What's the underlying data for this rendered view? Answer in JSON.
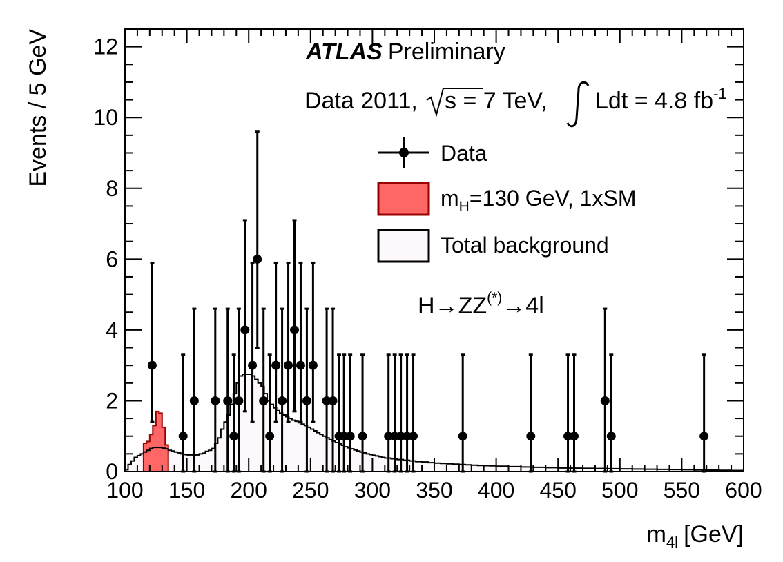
{
  "chart_data": {
    "type": "histogram",
    "title": "ATLAS",
    "title_suffix": "Preliminary",
    "lumi_prefix": "Data 2011,",
    "lumi_sqrt": "s = 7 TeV,",
    "lumi_text": "Ldt = 4.8 fb",
    "lumi_exp": "-1",
    "channel_H": "H",
    "channel_arrow": "→",
    "channel_ZZ": "ZZ",
    "channel_star": "(*)",
    "channel_4l": "4l",
    "xlabel_main": "m",
    "xlabel_sub": "4l",
    "xlabel_unit": "[GeV]",
    "ylabel": "Events / 5 GeV",
    "xlim": [
      100,
      600
    ],
    "ylim": [
      0,
      12.5
    ],
    "x_ticks": [
      100,
      150,
      200,
      250,
      300,
      350,
      400,
      450,
      500,
      550,
      600
    ],
    "y_ticks": [
      0,
      2,
      4,
      6,
      8,
      10,
      12
    ],
    "legend": {
      "data": "Data",
      "signal_main": "m",
      "signal_sub": "H",
      "signal_rest": "=130 GeV, 1xSM",
      "background": "Total background"
    },
    "background_step": [
      [
        100,
        0.05
      ],
      [
        102.5,
        0.2
      ],
      [
        105,
        0.3
      ],
      [
        107.5,
        0.4
      ],
      [
        110,
        0.45
      ],
      [
        112.5,
        0.5
      ],
      [
        115,
        0.55
      ],
      [
        117.5,
        0.6
      ],
      [
        120,
        0.65
      ],
      [
        122.5,
        0.68
      ],
      [
        125,
        0.68
      ],
      [
        127.5,
        0.68
      ],
      [
        130,
        0.66
      ],
      [
        132.5,
        0.64
      ],
      [
        135,
        0.6
      ],
      [
        137.5,
        0.58
      ],
      [
        140,
        0.55
      ],
      [
        142.5,
        0.53
      ],
      [
        145,
        0.5
      ],
      [
        147.5,
        0.48
      ],
      [
        150,
        0.47
      ],
      [
        152.5,
        0.47
      ],
      [
        155,
        0.46
      ],
      [
        157.5,
        0.47
      ],
      [
        160,
        0.5
      ],
      [
        162.5,
        0.52
      ],
      [
        165,
        0.57
      ],
      [
        167.5,
        0.6
      ],
      [
        170,
        0.65
      ],
      [
        172.5,
        0.8
      ],
      [
        175,
        0.95
      ],
      [
        177.5,
        1.2
      ],
      [
        180,
        1.4
      ],
      [
        182.5,
        1.6
      ],
      [
        185,
        1.9
      ],
      [
        187.5,
        2.2
      ],
      [
        190,
        2.5
      ],
      [
        192.5,
        2.7
      ],
      [
        195,
        2.75
      ],
      [
        197.5,
        2.75
      ],
      [
        200,
        2.75
      ],
      [
        202.5,
        2.7
      ],
      [
        205,
        2.6
      ],
      [
        207.5,
        2.5
      ],
      [
        210,
        2.4
      ],
      [
        212.5,
        2.2
      ],
      [
        215,
        2.0
      ],
      [
        217.5,
        1.9
      ],
      [
        220,
        1.8
      ],
      [
        222.5,
        1.72
      ],
      [
        225,
        1.65
      ],
      [
        227.5,
        1.6
      ],
      [
        230,
        1.55
      ],
      [
        232.5,
        1.5
      ],
      [
        235,
        1.45
      ],
      [
        237.5,
        1.42
      ],
      [
        240,
        1.38
      ],
      [
        242.5,
        1.34
      ],
      [
        245,
        1.3
      ],
      [
        247.5,
        1.25
      ],
      [
        250,
        1.2
      ],
      [
        252.5,
        1.15
      ],
      [
        255,
        1.1
      ],
      [
        257.5,
        1.05
      ],
      [
        260,
        1.0
      ],
      [
        262.5,
        0.95
      ],
      [
        265,
        0.9
      ],
      [
        267.5,
        0.86
      ],
      [
        270,
        0.82
      ],
      [
        272.5,
        0.78
      ],
      [
        275,
        0.74
      ],
      [
        277.5,
        0.7
      ],
      [
        280,
        0.67
      ],
      [
        282.5,
        0.64
      ],
      [
        285,
        0.61
      ],
      [
        287.5,
        0.58
      ],
      [
        290,
        0.55
      ],
      [
        292.5,
        0.53
      ],
      [
        295,
        0.5
      ],
      [
        297.5,
        0.48
      ],
      [
        300,
        0.46
      ],
      [
        302.5,
        0.44
      ],
      [
        305,
        0.42
      ],
      [
        307.5,
        0.4
      ],
      [
        310,
        0.38
      ],
      [
        315,
        0.36
      ],
      [
        320,
        0.34
      ],
      [
        325,
        0.32
      ],
      [
        330,
        0.3
      ],
      [
        335,
        0.28
      ],
      [
        340,
        0.27
      ],
      [
        345,
        0.25
      ],
      [
        350,
        0.24
      ],
      [
        355,
        0.23
      ],
      [
        360,
        0.22
      ],
      [
        365,
        0.21
      ],
      [
        370,
        0.2
      ],
      [
        375,
        0.19
      ],
      [
        380,
        0.18
      ],
      [
        385,
        0.17
      ],
      [
        390,
        0.165
      ],
      [
        395,
        0.16
      ],
      [
        400,
        0.15
      ],
      [
        410,
        0.14
      ],
      [
        420,
        0.13
      ],
      [
        430,
        0.12
      ],
      [
        440,
        0.11
      ],
      [
        450,
        0.1
      ],
      [
        460,
        0.095
      ],
      [
        470,
        0.09
      ],
      [
        480,
        0.085
      ],
      [
        490,
        0.08
      ],
      [
        500,
        0.075
      ],
      [
        510,
        0.07
      ],
      [
        520,
        0.065
      ],
      [
        530,
        0.06
      ],
      [
        540,
        0.055
      ],
      [
        550,
        0.05
      ],
      [
        560,
        0.045
      ],
      [
        570,
        0.04
      ],
      [
        580,
        0.035
      ],
      [
        590,
        0.03
      ],
      [
        600,
        0.03
      ]
    ],
    "signal_step": [
      [
        115,
        0.8
      ],
      [
        117.5,
        0.85
      ],
      [
        120,
        1.05
      ],
      [
        122.5,
        1.3
      ],
      [
        125,
        1.7
      ],
      [
        127.5,
        1.65
      ],
      [
        130,
        1.25
      ],
      [
        132.5,
        0.75
      ]
    ],
    "data_points": [
      {
        "x": 122,
        "y": 3,
        "lo": 1.4,
        "hi": 5.9
      },
      {
        "x": 147,
        "y": 1,
        "lo": 0.0,
        "hi": 3.3
      },
      {
        "x": 156,
        "y": 2,
        "lo": 0.0,
        "hi": 4.6
      },
      {
        "x": 173,
        "y": 2,
        "lo": 0.0,
        "hi": 4.6
      },
      {
        "x": 183,
        "y": 2,
        "lo": 0.0,
        "hi": 4.6
      },
      {
        "x": 188,
        "y": 1,
        "lo": 0.0,
        "hi": 3.3
      },
      {
        "x": 192,
        "y": 2,
        "lo": 0.0,
        "hi": 4.6
      },
      {
        "x": 197,
        "y": 4,
        "lo": 1.7,
        "hi": 7.1
      },
      {
        "x": 203,
        "y": 3,
        "lo": 1.4,
        "hi": 5.9
      },
      {
        "x": 207,
        "y": 6,
        "lo": 3.5,
        "hi": 9.6
      },
      {
        "x": 212,
        "y": 2,
        "lo": 0.0,
        "hi": 4.6
      },
      {
        "x": 217,
        "y": 1,
        "lo": 0.0,
        "hi": 3.3
      },
      {
        "x": 222,
        "y": 3,
        "lo": 1.4,
        "hi": 5.9
      },
      {
        "x": 227,
        "y": 2,
        "lo": 0.0,
        "hi": 4.6
      },
      {
        "x": 232,
        "y": 3,
        "lo": 1.4,
        "hi": 5.9
      },
      {
        "x": 237,
        "y": 4,
        "lo": 1.7,
        "hi": 7.1
      },
      {
        "x": 242,
        "y": 3,
        "lo": 1.4,
        "hi": 5.9
      },
      {
        "x": 247,
        "y": 2,
        "lo": 0.0,
        "hi": 4.6
      },
      {
        "x": 252,
        "y": 3,
        "lo": 1.4,
        "hi": 5.9
      },
      {
        "x": 263,
        "y": 2,
        "lo": 0.0,
        "hi": 4.6
      },
      {
        "x": 268,
        "y": 2,
        "lo": 0.0,
        "hi": 4.6
      },
      {
        "x": 273,
        "y": 1,
        "lo": 0.0,
        "hi": 3.3
      },
      {
        "x": 277,
        "y": 1,
        "lo": 0.0,
        "hi": 3.3
      },
      {
        "x": 282,
        "y": 1,
        "lo": 0.0,
        "hi": 3.3
      },
      {
        "x": 292,
        "y": 1,
        "lo": 0.0,
        "hi": 3.3
      },
      {
        "x": 313,
        "y": 1,
        "lo": 0.0,
        "hi": 3.3
      },
      {
        "x": 318,
        "y": 1,
        "lo": 0.0,
        "hi": 3.3
      },
      {
        "x": 323,
        "y": 1,
        "lo": 0.0,
        "hi": 3.3
      },
      {
        "x": 328,
        "y": 1,
        "lo": 0.0,
        "hi": 3.3
      },
      {
        "x": 333,
        "y": 1,
        "lo": 0.0,
        "hi": 3.3
      },
      {
        "x": 373,
        "y": 1,
        "lo": 0.0,
        "hi": 3.3
      },
      {
        "x": 428,
        "y": 1,
        "lo": 0.0,
        "hi": 3.3
      },
      {
        "x": 458,
        "y": 1,
        "lo": 0.0,
        "hi": 3.3
      },
      {
        "x": 463,
        "y": 1,
        "lo": 0.0,
        "hi": 3.3
      },
      {
        "x": 488,
        "y": 2,
        "lo": 0.0,
        "hi": 4.6
      },
      {
        "x": 493,
        "y": 1,
        "lo": 0.0,
        "hi": 3.3
      },
      {
        "x": 568,
        "y": 1,
        "lo": 0.0,
        "hi": 3.3
      }
    ],
    "colors": {
      "signal_fill": "#ff6666",
      "signal_line": "#990000",
      "background_fill": "#fdf8fb",
      "line": "#000000"
    }
  }
}
